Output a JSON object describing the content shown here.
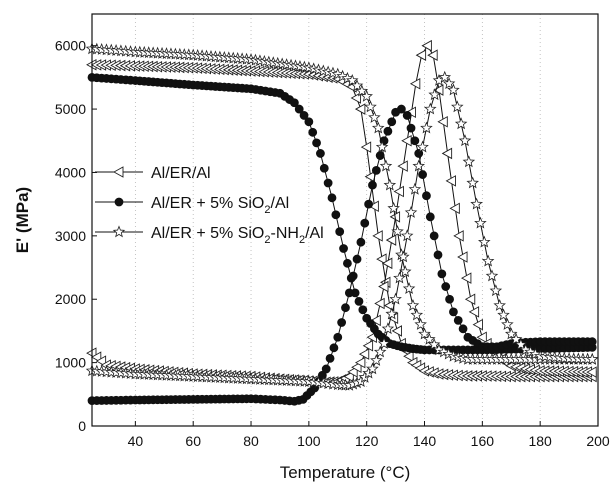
{
  "chart_data": {
    "type": "line",
    "xlabel": "Temperature (°C)",
    "ylabel": "E' (MPa)",
    "xlim": [
      25,
      200
    ],
    "ylim": [
      0,
      6500
    ],
    "x_ticks": [
      40,
      60,
      80,
      100,
      120,
      140,
      160,
      180,
      200
    ],
    "y_ticks": [
      0,
      1000,
      2000,
      3000,
      4000,
      5000,
      6000
    ],
    "grid": "vertical-dotted",
    "legend_position": "center-left",
    "series": [
      {
        "name": "Al/ER/Al",
        "legend_parts": [
          [
            "Al/ER/Al",
            "normal"
          ]
        ],
        "marker": "left-triangle-open",
        "branches": [
          {
            "x": [
              25,
              40,
              60,
              80,
              100,
              110,
              115,
              118,
              120,
              124,
              128,
              132,
              136,
              140,
              145,
              150,
              155,
              160,
              170,
              180,
              190,
              198
            ],
            "y": [
              5700,
              5680,
              5650,
              5600,
              5550,
              5480,
              5350,
              5000,
              4400,
              3000,
              1900,
              1300,
              1000,
              870,
              820,
              800,
              790,
              790,
              780,
              780,
              780,
              780
            ]
          },
          {
            "x": [
              25,
              30,
              40,
              50,
              60,
              70,
              80,
              90,
              100,
              106,
              110,
              114,
              118,
              122,
              126,
              130,
              134,
              137,
              139,
              141,
              143,
              145,
              148,
              152,
              156,
              160,
              165,
              170,
              175,
              180,
              190,
              198
            ],
            "y": [
              1150,
              960,
              900,
              860,
              820,
              800,
              780,
              740,
              710,
              690,
              700,
              780,
              1000,
              1400,
              2200,
              3300,
              4500,
              5400,
              5850,
              6000,
              5850,
              5300,
              4300,
              3000,
              2000,
              1400,
              1100,
              950,
              900,
              870,
              860,
              850
            ]
          }
        ]
      },
      {
        "name": "Al/ER + 5% SiO2/Al",
        "legend_parts": [
          [
            "Al/ER + 5% SiO",
            "normal"
          ],
          [
            "2",
            "sub"
          ],
          [
            "/Al",
            "normal"
          ]
        ],
        "marker": "circle-filled",
        "branches": [
          {
            "x": [
              25,
              40,
              60,
              80,
              90,
              95,
              100,
              104,
              108,
              112,
              116,
              120,
              124,
              128,
              132,
              136,
              140,
              145,
              150,
              160,
              170,
              180,
              190,
              198
            ],
            "y": [
              5500,
              5450,
              5380,
              5320,
              5250,
              5100,
              4800,
              4300,
              3600,
              2800,
              2100,
              1700,
              1450,
              1300,
              1250,
              1220,
              1200,
              1200,
              1200,
              1200,
              1210,
              1220,
              1230,
              1240
            ]
          },
          {
            "x": [
              25,
              40,
              60,
              80,
              90,
              95,
              98,
              102,
              106,
              110,
              114,
              118,
              122,
              126,
              130,
              132,
              134,
              138,
              142,
              146,
              150,
              155,
              160,
              165,
              170,
              175,
              180,
              190,
              198
            ],
            "y": [
              400,
              410,
              420,
              430,
              410,
              390,
              420,
              600,
              900,
              1400,
              2100,
              2900,
              3800,
              4500,
              4950,
              5000,
              4900,
              4300,
              3300,
              2400,
              1800,
              1400,
              1250,
              1250,
              1300,
              1320,
              1330,
              1330,
              1330
            ]
          }
        ]
      },
      {
        "name": "Al/ER + 5% SiO2-NH2/Al",
        "legend_parts": [
          [
            "Al/ER + 5% SiO",
            "normal"
          ],
          [
            "2",
            "sub"
          ],
          [
            "-NH",
            "normal"
          ],
          [
            "2",
            "sub"
          ],
          [
            "/Al",
            "normal"
          ]
        ],
        "marker": "star-open",
        "branches": [
          {
            "x": [
              25,
              40,
              60,
              80,
              100,
              110,
              115,
              120,
              124,
              128,
              132,
              136,
              140,
              145,
              150,
              155,
              160,
              165,
              170,
              180,
              190,
              198
            ],
            "y": [
              5950,
              5900,
              5850,
              5780,
              5650,
              5550,
              5450,
              5200,
              4700,
              3800,
              2700,
              1900,
              1450,
              1200,
              1100,
              1050,
              1050,
              1050,
              1050,
              1050,
              1050,
              1050
            ]
          },
          {
            "x": [
              25,
              40,
              60,
              80,
              100,
              110,
              114,
              118,
              122,
              126,
              130,
              134,
              138,
              142,
              145,
              147,
              150,
              154,
              158,
              162,
              166,
              170,
              175,
              180,
              190,
              198
            ],
            "y": [
              870,
              820,
              780,
              740,
              700,
              650,
              640,
              700,
              900,
              1300,
              2000,
              3000,
              4100,
              5000,
              5450,
              5500,
              5300,
              4500,
              3500,
              2600,
              1900,
              1450,
              1200,
              1100,
              1060,
              1050
            ]
          }
        ]
      }
    ]
  }
}
